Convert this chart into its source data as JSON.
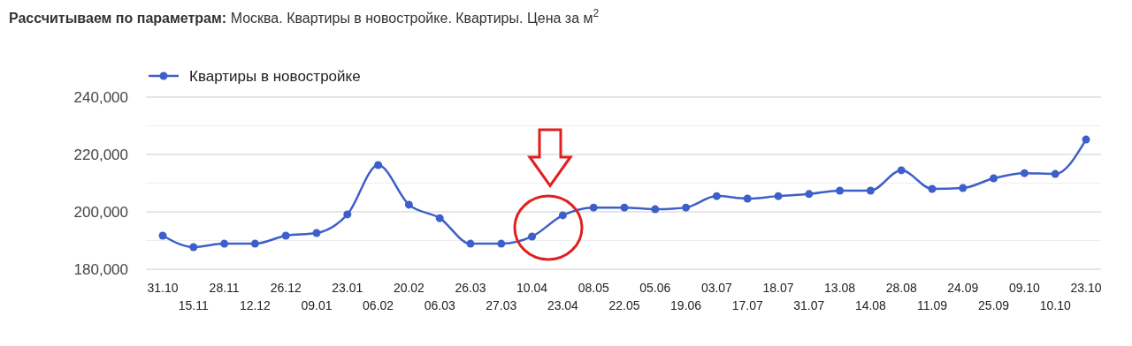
{
  "chart_data": {
    "type": "line",
    "title": "Рассчитываем по параметрам:",
    "subtitle": "Москва. Квартиры в новостройке. Квартиры. Цена за м$^{2}$",
    "categories": [
      "31.10",
      "15.11",
      "28.11",
      "12.12",
      "26.12",
      "09.01",
      "23.01",
      "06.02",
      "20.02",
      "06.03",
      "26.03",
      "27.03",
      "10.04",
      "23.04",
      "08.05",
      "22.05",
      "05.06",
      "19.06",
      "03.07",
      "17.07",
      "18.07",
      "31.07",
      "13.08",
      "14.08",
      "28.08",
      "11.09",
      "24.09",
      "25.09",
      "09.10",
      "10.10",
      "23.10"
    ],
    "series": [
      {
        "name": "Квартиры в новостройке",
        "color": "#3d5fc9",
        "values": [
          191700,
          187700,
          188900,
          188900,
          191700,
          192600,
          199100,
          216300,
          202500,
          197800,
          188900,
          188900,
          191400,
          198800,
          201500,
          201500,
          200900,
          201500,
          205500,
          204600,
          205500,
          206200,
          207400,
          207400,
          214500,
          208000,
          208300,
          211700,
          213500,
          213200,
          225200
        ]
      }
    ],
    "ylim": [
      180000,
      240000
    ],
    "yticks": [
      {
        "value": 180000,
        "label": "180,000"
      },
      {
        "value": 190000,
        "label": null
      },
      {
        "value": 200000,
        "label": "200,000"
      },
      {
        "value": 210000,
        "label": null
      },
      {
        "value": 220000,
        "label": "220,000"
      },
      {
        "value": 230000,
        "label": null
      },
      {
        "value": 240000,
        "label": "240,000"
      }
    ],
    "grid": "y",
    "legend": "top left",
    "marker": "circle",
    "line_style": "solid"
  }
}
